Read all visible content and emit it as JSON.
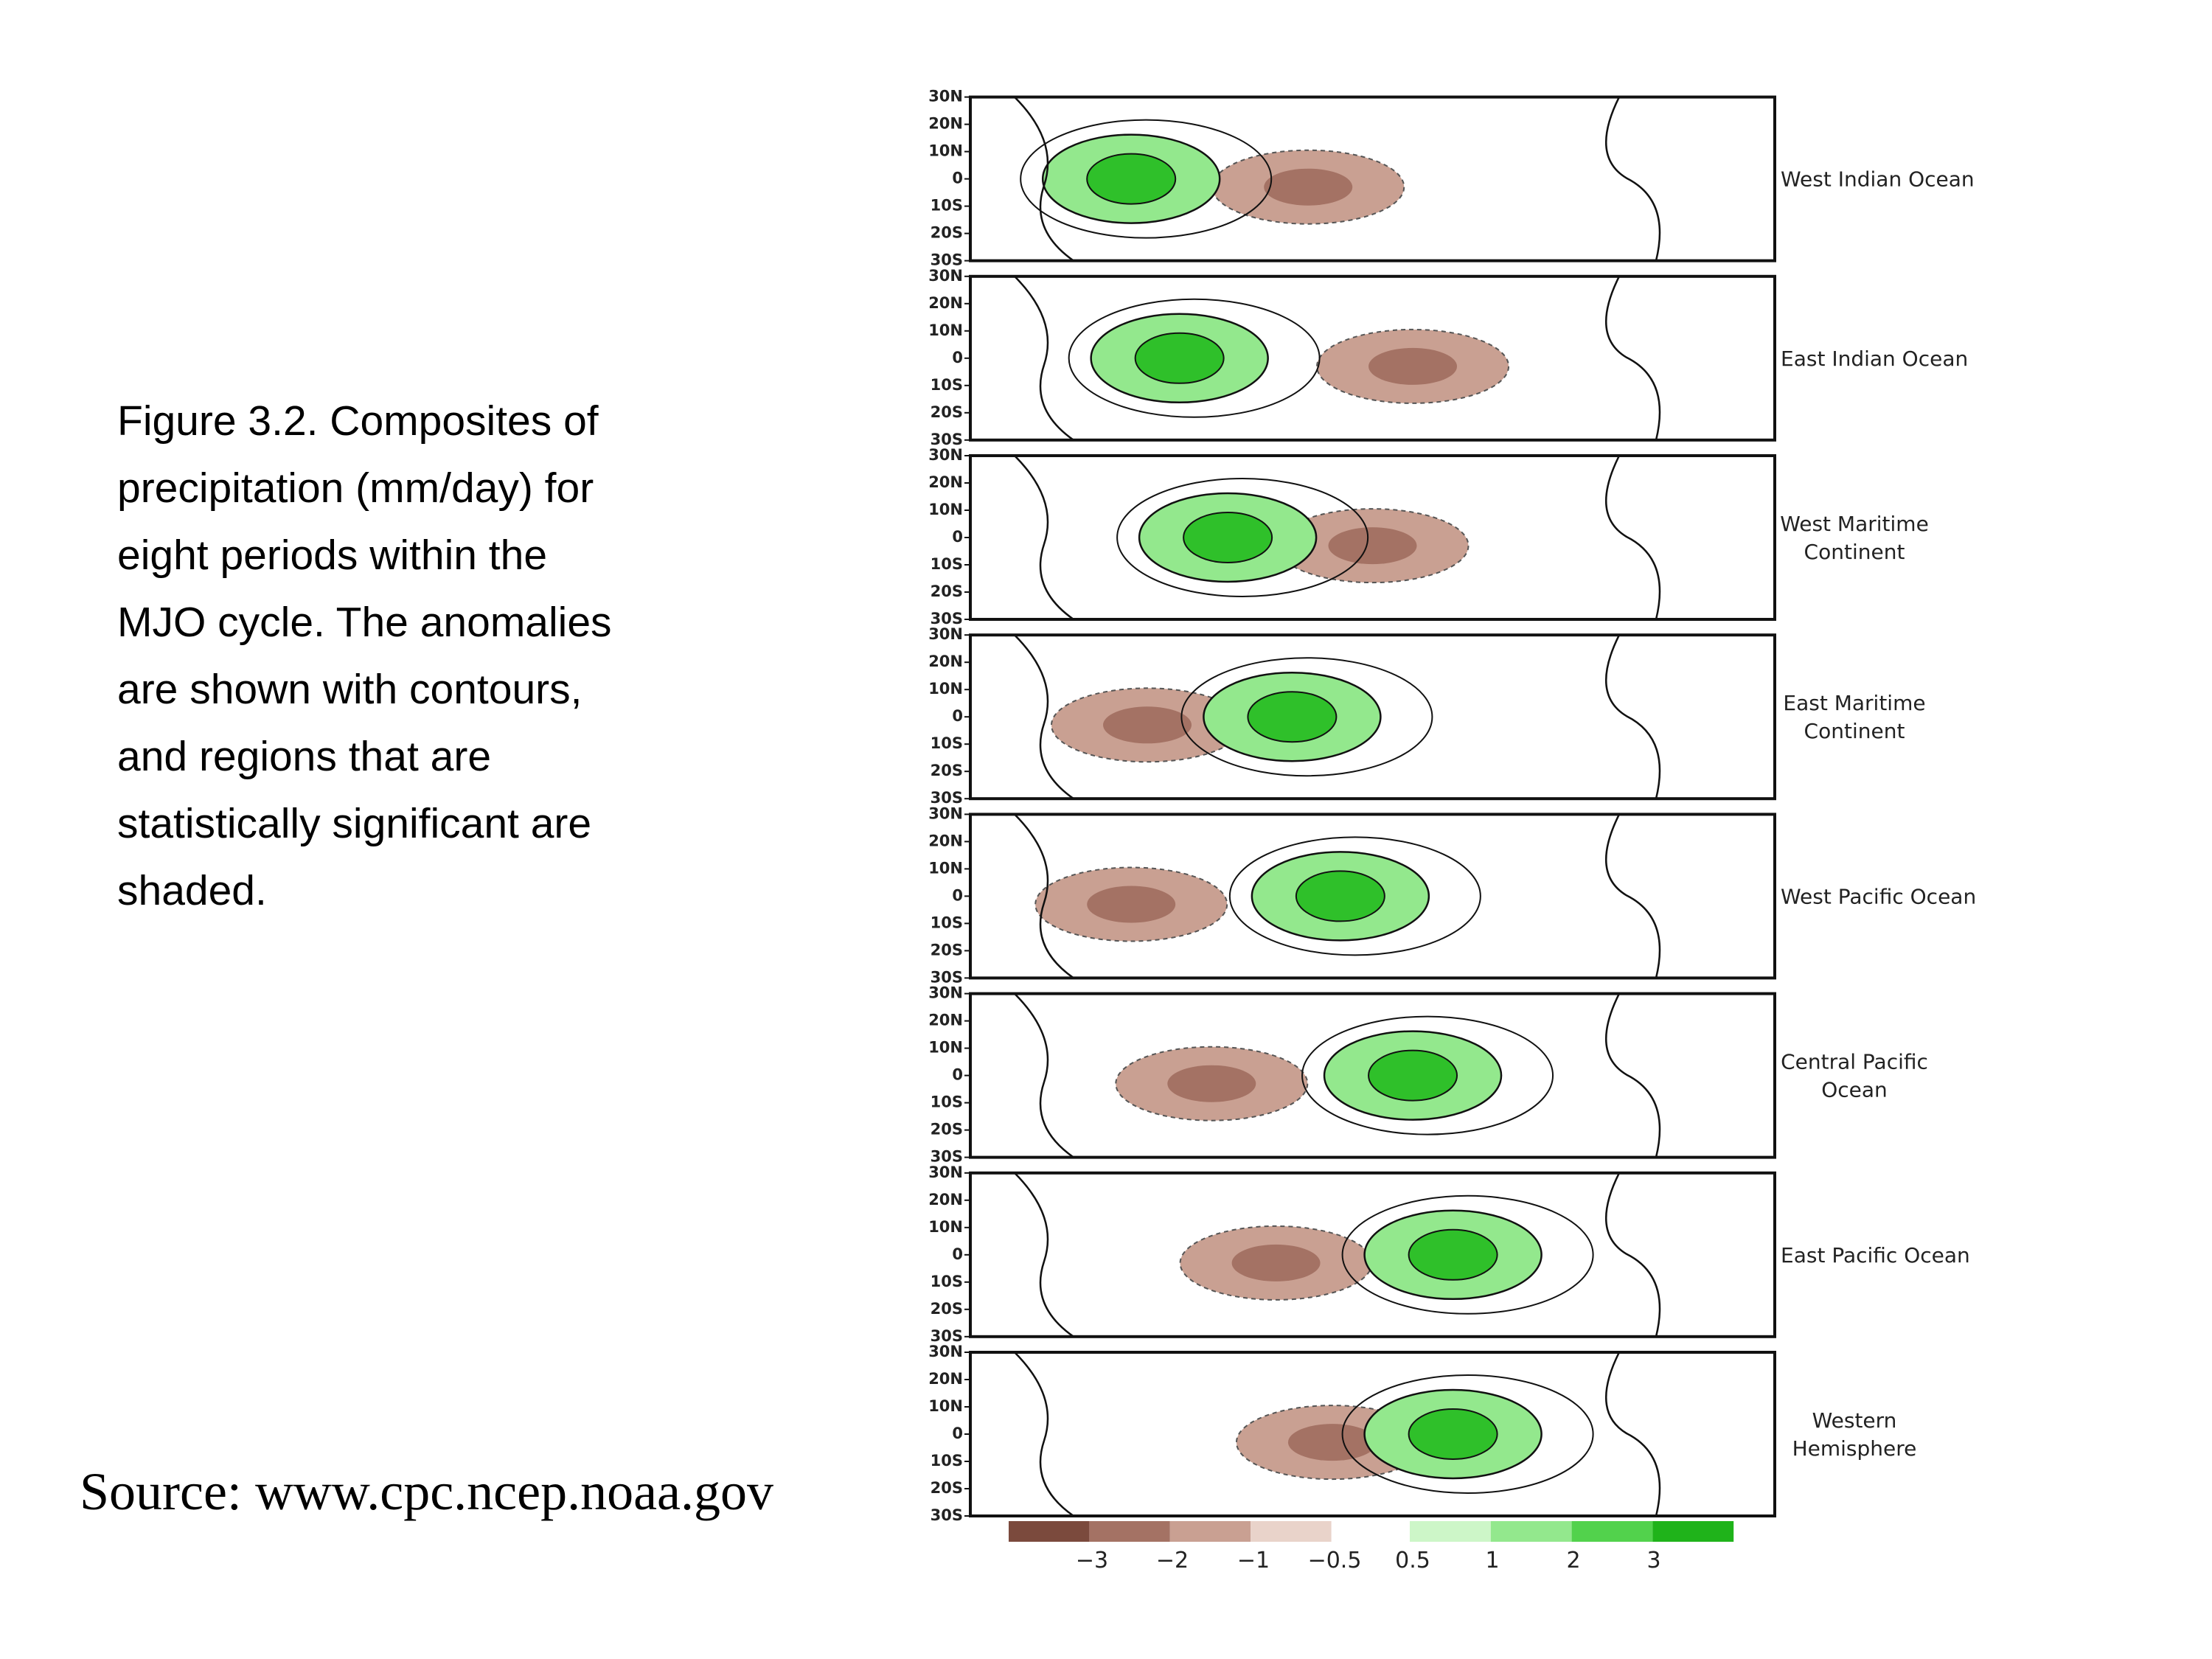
{
  "caption": [
    "Figure 3.2.  Composites of",
    "precipitation (mm/day) for",
    "eight periods within the",
    "MJO cycle. The anomalies",
    "are shown with contours,",
    "and regions that are",
    "statistically significant are",
    "shaded."
  ],
  "source": "Source: www.cpc.ncep.noaa.gov",
  "figure": {
    "lat_labels": [
      "30N",
      "20N",
      "10N",
      "0",
      "10S",
      "20S",
      "30S"
    ],
    "panels": [
      {
        "label": [
          "West Indian Ocean"
        ]
      },
      {
        "label": [
          "East Indian Ocean"
        ]
      },
      {
        "label": [
          "West Maritime",
          "Continent"
        ]
      },
      {
        "label": [
          "East Maritime",
          "Continent"
        ]
      },
      {
        "label": [
          "West Pacific Ocean"
        ]
      },
      {
        "label": [
          "Central Pacific",
          "Ocean"
        ]
      },
      {
        "label": [
          "East Pacific Ocean"
        ]
      },
      {
        "label": [
          "Western",
          "Hemisphere"
        ]
      }
    ],
    "colorbar": {
      "labels": [
        "−3",
        "−2",
        "−1",
        "−0.5",
        "0.5",
        "1",
        "2",
        "3"
      ],
      "colors": [
        "#7b4a3d",
        "#a47264",
        "#c9a092",
        "#e9d3ca",
        "#cdf6c8",
        "#93e88d",
        "#52d24c",
        "#1fb31a"
      ]
    }
  }
}
